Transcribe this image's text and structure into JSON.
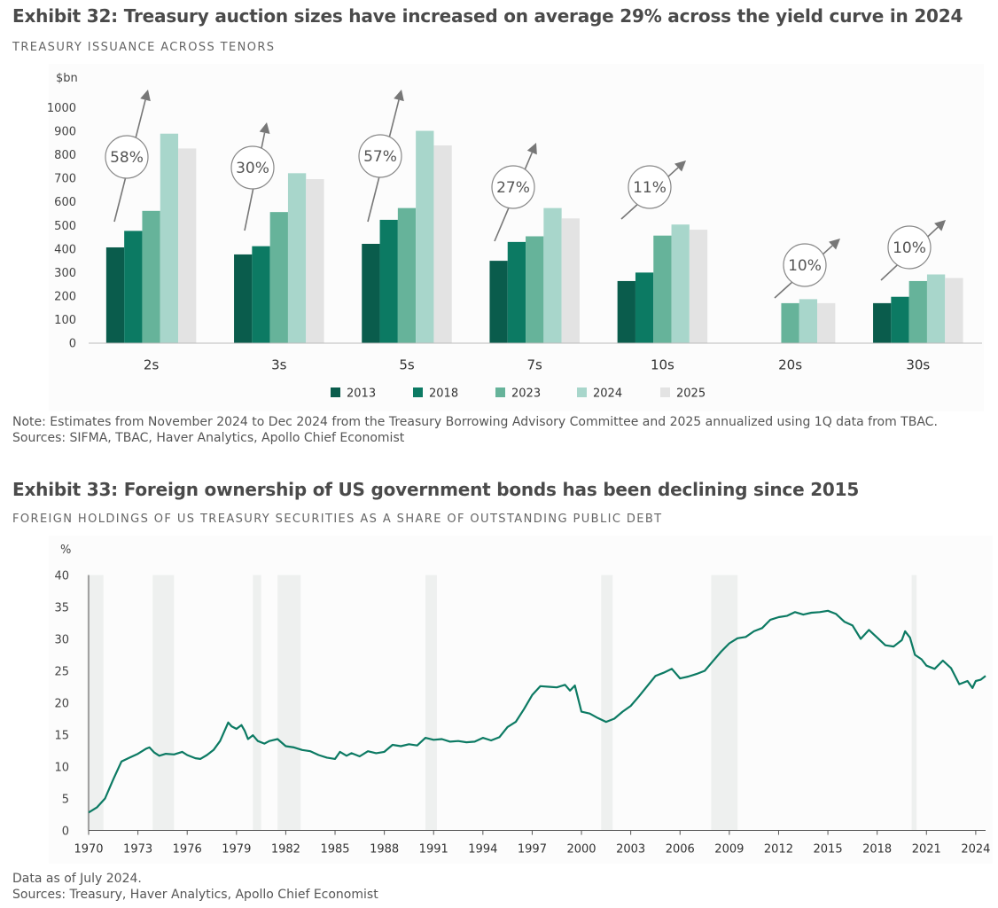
{
  "exhibit32": {
    "title": "Exhibit 32: Treasury auction sizes have increased on average 29% across the yield curve in 2024",
    "subtitle": "TREASURY ISSUANCE ACROSS TENORS",
    "note": "Note: Estimates from November 2024 to Dec 2024 from the Treasury Borrowing Advisory Committee and 2025 annualized using 1Q data from TBAC.",
    "sources": "Sources: SIFMA, TBAC, Haver Analytics, Apollo Chief Economist"
  },
  "exhibit33": {
    "title": "Exhibit 33: Foreign ownership of US government bonds has been declining since 2015",
    "subtitle": "FOREIGN HOLDINGS OF US TREASURY SECURITIES AS A SHARE OF OUTSTANDING PUBLIC DEBT",
    "note": "Data as of July 2024.",
    "sources": "Sources: Treasury, Haver Analytics, Apollo Chief Economist"
  },
  "chart_data": [
    {
      "type": "bar",
      "ylabel": "$bn",
      "ylim": [
        0,
        1000
      ],
      "yticks": [
        0,
        100,
        200,
        300,
        400,
        500,
        600,
        700,
        800,
        900,
        1000
      ],
      "categories": [
        "2s",
        "3s",
        "5s",
        "7s",
        "10s",
        "20s",
        "30s"
      ],
      "series": [
        {
          "name": "2013",
          "color": "#0a5c4c",
          "values": [
            405,
            375,
            420,
            348,
            262,
            0,
            168
          ]
        },
        {
          "name": "2018",
          "color": "#0c7a63",
          "values": [
            475,
            410,
            522,
            428,
            298,
            0,
            195
          ]
        },
        {
          "name": "2023",
          "color": "#66b39a",
          "values": [
            560,
            555,
            572,
            452,
            455,
            168,
            262
          ]
        },
        {
          "name": "2024",
          "color": "#a8d6cb",
          "values": [
            888,
            720,
            900,
            572,
            502,
            185,
            290
          ]
        },
        {
          "name": "2025",
          "color": "#e3e3e3",
          "values": [
            825,
            695,
            838,
            528,
            480,
            168,
            275
          ]
        }
      ],
      "annotations": [
        "58%",
        "30%",
        "57%",
        "27%",
        "11%",
        "10%",
        "10%"
      ],
      "legend": "bottom",
      "grid": false
    },
    {
      "type": "line",
      "ylabel": "%",
      "ylim": [
        0,
        40
      ],
      "yticks": [
        0,
        5,
        10,
        15,
        20,
        25,
        30,
        35,
        40
      ],
      "xlim": [
        1970,
        2024.6
      ],
      "xticks": [
        "1970",
        "1973",
        "1976",
        "1979",
        "1982",
        "1985",
        "1988",
        "1991",
        "1994",
        "1997",
        "2000",
        "2003",
        "2006",
        "2009",
        "2012",
        "2015",
        "2018",
        "2021",
        "2024"
      ],
      "recessions": [
        [
          1969.9,
          1970.9
        ],
        [
          1973.9,
          1975.2
        ],
        [
          1980.0,
          1980.5
        ],
        [
          1981.5,
          1982.9
        ],
        [
          1990.5,
          1991.2
        ],
        [
          2001.2,
          2001.9
        ],
        [
          2007.9,
          2009.5
        ],
        [
          2020.1,
          2020.4
        ]
      ],
      "grid": false,
      "series": [
        {
          "color": "#0c7a63",
          "points": [
            [
              1970.0,
              2.8
            ],
            [
              1970.5,
              3.6
            ],
            [
              1971.0,
              5.0
            ],
            [
              1971.5,
              8.0
            ],
            [
              1972.0,
              10.8
            ],
            [
              1972.5,
              11.4
            ],
            [
              1973.0,
              12.0
            ],
            [
              1973.5,
              12.8
            ],
            [
              1973.7,
              13.0
            ],
            [
              1974.0,
              12.2
            ],
            [
              1974.3,
              11.7
            ],
            [
              1974.7,
              12.0
            ],
            [
              1975.2,
              11.9
            ],
            [
              1975.7,
              12.3
            ],
            [
              1976.0,
              11.8
            ],
            [
              1976.5,
              11.3
            ],
            [
              1976.8,
              11.2
            ],
            [
              1977.2,
              11.8
            ],
            [
              1977.6,
              12.6
            ],
            [
              1978.0,
              14.0
            ],
            [
              1978.5,
              16.9
            ],
            [
              1978.7,
              16.3
            ],
            [
              1979.0,
              15.9
            ],
            [
              1979.3,
              16.5
            ],
            [
              1979.5,
              15.6
            ],
            [
              1979.7,
              14.3
            ],
            [
              1980.0,
              14.9
            ],
            [
              1980.3,
              14.0
            ],
            [
              1980.7,
              13.6
            ],
            [
              1981.0,
              14.0
            ],
            [
              1981.5,
              14.3
            ],
            [
              1982.0,
              13.2
            ],
            [
              1982.5,
              13.0
            ],
            [
              1983.0,
              12.6
            ],
            [
              1983.5,
              12.4
            ],
            [
              1984.0,
              11.8
            ],
            [
              1984.5,
              11.4
            ],
            [
              1985.0,
              11.2
            ],
            [
              1985.3,
              12.3
            ],
            [
              1985.7,
              11.7
            ],
            [
              1986.0,
              12.1
            ],
            [
              1986.5,
              11.6
            ],
            [
              1987.0,
              12.4
            ],
            [
              1987.5,
              12.1
            ],
            [
              1988.0,
              12.3
            ],
            [
              1988.5,
              13.4
            ],
            [
              1989.0,
              13.2
            ],
            [
              1989.5,
              13.5
            ],
            [
              1990.0,
              13.3
            ],
            [
              1990.5,
              14.5
            ],
            [
              1991.0,
              14.2
            ],
            [
              1991.5,
              14.3
            ],
            [
              1992.0,
              13.9
            ],
            [
              1992.5,
              14.0
            ],
            [
              1993.0,
              13.8
            ],
            [
              1993.5,
              13.9
            ],
            [
              1994.0,
              14.5
            ],
            [
              1994.5,
              14.1
            ],
            [
              1995.0,
              14.6
            ],
            [
              1995.5,
              16.2
            ],
            [
              1996.0,
              17.0
            ],
            [
              1996.5,
              19.0
            ],
            [
              1997.0,
              21.2
            ],
            [
              1997.5,
              22.6
            ],
            [
              1998.0,
              22.5
            ],
            [
              1998.5,
              22.4
            ],
            [
              1999.0,
              22.8
            ],
            [
              1999.3,
              21.9
            ],
            [
              1999.6,
              22.7
            ],
            [
              2000.0,
              18.6
            ],
            [
              2000.5,
              18.3
            ],
            [
              2001.0,
              17.6
            ],
            [
              2001.5,
              17.0
            ],
            [
              2002.0,
              17.5
            ],
            [
              2002.5,
              18.6
            ],
            [
              2003.0,
              19.5
            ],
            [
              2003.5,
              21.0
            ],
            [
              2004.0,
              22.6
            ],
            [
              2004.5,
              24.2
            ],
            [
              2005.0,
              24.7
            ],
            [
              2005.5,
              25.3
            ],
            [
              2006.0,
              23.8
            ],
            [
              2006.5,
              24.1
            ],
            [
              2007.0,
              24.5
            ],
            [
              2007.5,
              25.0
            ],
            [
              2008.0,
              26.5
            ],
            [
              2008.5,
              28.0
            ],
            [
              2009.0,
              29.3
            ],
            [
              2009.5,
              30.1
            ],
            [
              2010.0,
              30.3
            ],
            [
              2010.5,
              31.2
            ],
            [
              2011.0,
              31.7
            ],
            [
              2011.5,
              33.0
            ],
            [
              2012.0,
              33.4
            ],
            [
              2012.5,
              33.6
            ],
            [
              2013.0,
              34.2
            ],
            [
              2013.5,
              33.8
            ],
            [
              2014.0,
              34.1
            ],
            [
              2014.5,
              34.2
            ],
            [
              2015.0,
              34.4
            ],
            [
              2015.5,
              33.9
            ],
            [
              2016.0,
              32.7
            ],
            [
              2016.5,
              32.1
            ],
            [
              2017.0,
              30.0
            ],
            [
              2017.5,
              31.4
            ],
            [
              2018.0,
              30.2
            ],
            [
              2018.5,
              29.0
            ],
            [
              2019.0,
              28.8
            ],
            [
              2019.5,
              29.8
            ],
            [
              2019.7,
              31.2
            ],
            [
              2020.0,
              30.2
            ],
            [
              2020.3,
              27.5
            ],
            [
              2020.7,
              26.8
            ],
            [
              2021.0,
              25.8
            ],
            [
              2021.5,
              25.3
            ],
            [
              2022.0,
              26.6
            ],
            [
              2022.5,
              25.4
            ],
            [
              2023.0,
              22.9
            ],
            [
              2023.5,
              23.4
            ],
            [
              2023.8,
              22.3
            ],
            [
              2024.0,
              23.4
            ],
            [
              2024.3,
              23.6
            ],
            [
              2024.6,
              24.2
            ]
          ]
        }
      ]
    }
  ]
}
